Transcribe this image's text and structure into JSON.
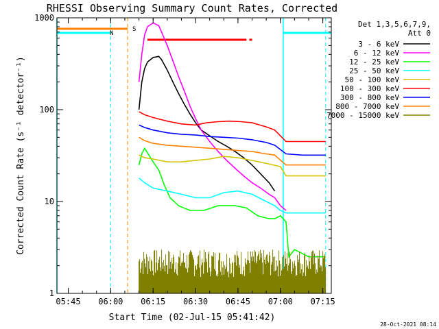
{
  "chart_data": {
    "type": "line",
    "title": "RHESSI Observing Summary Count Rates, Corrected",
    "xlabel": "Start Time (02-Jul-15 05:41:42)",
    "ylabel": "Corrected Count Rate (s⁻¹ detector⁻¹)",
    "y_scale": "log",
    "ylim": [
      1,
      1000
    ],
    "xlim": [
      "05:41",
      "07:18"
    ],
    "x_ticks": [
      "05:45",
      "06:00",
      "06:15",
      "06:30",
      "06:45",
      "07:00",
      "07:15"
    ],
    "y_ticks": [
      "1",
      "10",
      "100",
      "1000"
    ],
    "legend_header": [
      "Det 1,3,5,6,7,9,",
      "Att 0"
    ],
    "timestamp": "28-Oct-2021 08:14",
    "flags": [
      {
        "label": "N",
        "color": "#00ffff"
      },
      {
        "label": "S",
        "color": "#ff8000"
      }
    ],
    "series": [
      {
        "name": "3 - 6 keV",
        "color": "#000000",
        "points": [
          [
            "06:10",
            100
          ],
          [
            "06:11",
            200
          ],
          [
            "06:12",
            280
          ],
          [
            "06:13",
            330
          ],
          [
            "06:15",
            370
          ],
          [
            "06:17",
            380
          ],
          [
            "06:18",
            350
          ],
          [
            "06:20",
            270
          ],
          [
            "06:22",
            200
          ],
          [
            "06:24",
            150
          ],
          [
            "06:26",
            115
          ],
          [
            "06:28",
            90
          ],
          [
            "06:30",
            72
          ],
          [
            "06:32",
            60
          ],
          [
            "06:35",
            52
          ],
          [
            "06:38",
            45
          ],
          [
            "06:41",
            40
          ],
          [
            "06:44",
            35
          ],
          [
            "06:47",
            30
          ],
          [
            "06:50",
            25
          ],
          [
            "06:53",
            20
          ],
          [
            "06:56",
            16
          ],
          [
            "06:58",
            13
          ]
        ]
      },
      {
        "name": "6 - 12 keV",
        "color": "#ff00ff",
        "points": [
          [
            "06:10",
            200
          ],
          [
            "06:11",
            400
          ],
          [
            "06:12",
            650
          ],
          [
            "06:13",
            800
          ],
          [
            "06:15",
            880
          ],
          [
            "06:17",
            820
          ],
          [
            "06:18",
            700
          ],
          [
            "06:20",
            500
          ],
          [
            "06:22",
            340
          ],
          [
            "06:24",
            230
          ],
          [
            "06:26",
            160
          ],
          [
            "06:28",
            110
          ],
          [
            "06:30",
            80
          ],
          [
            "06:32",
            60
          ],
          [
            "06:35",
            45
          ],
          [
            "06:38",
            35
          ],
          [
            "06:41",
            28
          ],
          [
            "06:44",
            23
          ],
          [
            "06:47",
            19
          ],
          [
            "06:50",
            16
          ],
          [
            "06:53",
            14
          ],
          [
            "06:56",
            12
          ],
          [
            "06:58",
            11
          ],
          [
            "07:00",
            9
          ],
          [
            "07:02",
            8
          ]
        ]
      },
      {
        "name": "12 - 25 keV",
        "color": "#00ff00",
        "points": [
          [
            "06:10",
            25
          ],
          [
            "06:11",
            33
          ],
          [
            "06:12",
            38
          ],
          [
            "06:13",
            34
          ],
          [
            "06:15",
            27
          ],
          [
            "06:17",
            22
          ],
          [
            "06:19",
            15
          ],
          [
            "06:21",
            11
          ],
          [
            "06:24",
            9
          ],
          [
            "06:28",
            8
          ],
          [
            "06:33",
            8
          ],
          [
            "06:38",
            9
          ],
          [
            "06:44",
            9
          ],
          [
            "06:48",
            8.5
          ],
          [
            "06:52",
            7
          ],
          [
            "06:56",
            6.5
          ],
          [
            "06:58",
            6.5
          ],
          [
            "07:00",
            7
          ],
          [
            "07:02",
            6
          ],
          [
            "07:03",
            2.5
          ],
          [
            "07:05",
            3
          ],
          [
            "07:10",
            2.5
          ],
          [
            "07:16",
            2.5
          ]
        ]
      },
      {
        "name": "25 - 50 keV",
        "color": "#00ffff",
        "points": [
          [
            "06:10",
            18
          ],
          [
            "06:12",
            16
          ],
          [
            "06:15",
            14
          ],
          [
            "06:20",
            13
          ],
          [
            "06:25",
            12
          ],
          [
            "06:30",
            11
          ],
          [
            "06:35",
            11
          ],
          [
            "06:40",
            12.5
          ],
          [
            "06:45",
            13
          ],
          [
            "06:50",
            12
          ],
          [
            "06:55",
            10
          ],
          [
            "06:58",
            9
          ],
          [
            "07:00",
            8
          ],
          [
            "07:02",
            7.5
          ],
          [
            "07:08",
            7.5
          ],
          [
            "07:16",
            7.5
          ]
        ]
      },
      {
        "name": "50 - 100 keV",
        "color": "#d4c400",
        "points": [
          [
            "06:10",
            32
          ],
          [
            "06:12",
            30
          ],
          [
            "06:15",
            29
          ],
          [
            "06:20",
            27
          ],
          [
            "06:25",
            27
          ],
          [
            "06:30",
            28
          ],
          [
            "06:35",
            29
          ],
          [
            "06:40",
            31
          ],
          [
            "06:45",
            30
          ],
          [
            "06:50",
            28
          ],
          [
            "06:55",
            26
          ],
          [
            "07:00",
            24
          ],
          [
            "07:02",
            19
          ],
          [
            "07:08",
            19
          ],
          [
            "07:16",
            19
          ]
        ]
      },
      {
        "name": "100 - 300 keV",
        "color": "#ff0000",
        "points": [
          [
            "06:10",
            95
          ],
          [
            "06:12",
            88
          ],
          [
            "06:15",
            82
          ],
          [
            "06:20",
            75
          ],
          [
            "06:25",
            70
          ],
          [
            "06:30",
            68
          ],
          [
            "06:34",
            72
          ],
          [
            "06:38",
            74
          ],
          [
            "06:42",
            75
          ],
          [
            "06:46",
            74
          ],
          [
            "06:50",
            72
          ],
          [
            "06:55",
            65
          ],
          [
            "06:58",
            60
          ],
          [
            "07:02",
            45
          ],
          [
            "07:08",
            45
          ],
          [
            "07:16",
            45
          ]
        ]
      },
      {
        "name": "300 - 800 keV",
        "color": "#0000ff",
        "points": [
          [
            "06:10",
            68
          ],
          [
            "06:12",
            64
          ],
          [
            "06:15",
            60
          ],
          [
            "06:20",
            56
          ],
          [
            "06:25",
            54
          ],
          [
            "06:30",
            53
          ],
          [
            "06:35",
            51
          ],
          [
            "06:40",
            50
          ],
          [
            "06:45",
            49
          ],
          [
            "06:50",
            47
          ],
          [
            "06:55",
            44
          ],
          [
            "06:58",
            41
          ],
          [
            "07:02",
            33
          ],
          [
            "07:08",
            32
          ],
          [
            "07:16",
            32
          ]
        ]
      },
      {
        "name": "800 - 7000 keV",
        "color": "#ff8000",
        "points": [
          [
            "06:10",
            50
          ],
          [
            "06:12",
            46
          ],
          [
            "06:15",
            43
          ],
          [
            "06:20",
            41
          ],
          [
            "06:25",
            40
          ],
          [
            "06:30",
            39
          ],
          [
            "06:35",
            38
          ],
          [
            "06:40",
            37
          ],
          [
            "06:45",
            36
          ],
          [
            "06:50",
            35
          ],
          [
            "06:55",
            33
          ],
          [
            "06:58",
            32
          ],
          [
            "07:02",
            25
          ],
          [
            "07:08",
            25
          ],
          [
            "07:16",
            25
          ]
        ]
      },
      {
        "name": "7000 - 15000 keV",
        "color": "#808000",
        "points": [
          [
            "06:10",
            2
          ],
          [
            "06:20",
            2
          ],
          [
            "06:30",
            2
          ],
          [
            "06:40",
            2
          ],
          [
            "06:50",
            2
          ],
          [
            "07:00",
            2
          ],
          [
            "07:10",
            2
          ],
          [
            "07:16",
            2
          ]
        ]
      }
    ]
  }
}
